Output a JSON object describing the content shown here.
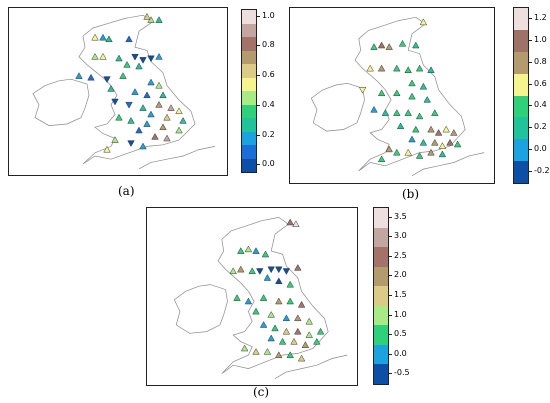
{
  "captions": {
    "a": "(a)",
    "b": "(b)",
    "c": "(c)"
  },
  "colorbars": {
    "a": {
      "ticks": [
        "1.0",
        "0.8",
        "0.6",
        "0.4",
        "0.2",
        "0.0"
      ],
      "colors": [
        "#eedfdf",
        "#c4a6a0",
        "#a3736a",
        "#b49b6e",
        "#dccb86",
        "#f6f48f",
        "#a8ea85",
        "#2fd07a",
        "#21c39a",
        "#1aa3de",
        "#1b6ed6",
        "#0d4ea6"
      ]
    },
    "b": {
      "ticks": [
        "1.2",
        "1.0",
        "0.8",
        "0.6",
        "0.4",
        "0.2",
        "0.0",
        "-0.2"
      ],
      "colors": [
        "#eedfdf",
        "#9f7268",
        "#b49b6e",
        "#f6f48f",
        "#2fd07a",
        "#21c39a",
        "#1aa3de",
        "#0d4ea6"
      ]
    },
    "c": {
      "ticks": [
        "3.5",
        "3.0",
        "2.5",
        "2.0",
        "1.5",
        "1.0",
        "0.5",
        "0.0",
        "-0.5"
      ],
      "colors": [
        "#eedfdf",
        "#c4a6a0",
        "#a3736a",
        "#b49b6e",
        "#dccb86",
        "#a8ea85",
        "#2fd07a",
        "#1aa3de",
        "#0d4ea6"
      ]
    }
  },
  "icons": {
    "up_marker": "triangle-up",
    "down_marker": "triangle-down"
  }
}
